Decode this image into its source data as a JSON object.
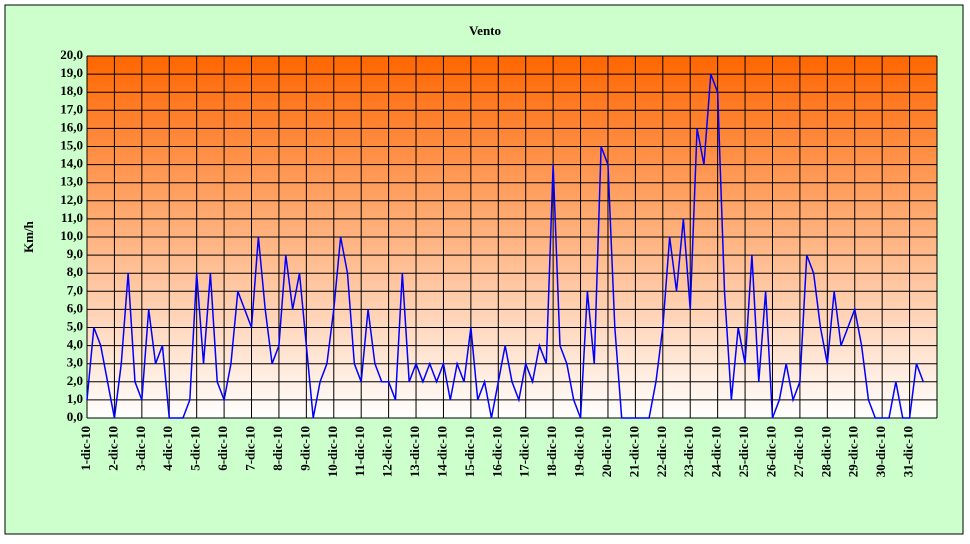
{
  "chart_data": {
    "type": "line",
    "title": "Vento",
    "y_label": "Km/h",
    "x": [
      0,
      6,
      12,
      18,
      24,
      30,
      36,
      42,
      48,
      54,
      60,
      66,
      72,
      78,
      84,
      90,
      96,
      102,
      108,
      114,
      120,
      126,
      132,
      138,
      144,
      150,
      156,
      162,
      168,
      174,
      180,
      186,
      192,
      198,
      204,
      210,
      216,
      222,
      228,
      234,
      240,
      246,
      252,
      258,
      264,
      270,
      276,
      282,
      288,
      294,
      300,
      306,
      312,
      318,
      324,
      330,
      336,
      342,
      348,
      354,
      360,
      366,
      372,
      378,
      384,
      390,
      396,
      402,
      408,
      414,
      420,
      426,
      432,
      438,
      444,
      450,
      456,
      462,
      468,
      474,
      480,
      486,
      492,
      498,
      504,
      510,
      516,
      522,
      528,
      534,
      540,
      546,
      552,
      558,
      564,
      570,
      576,
      582,
      588,
      594,
      600,
      606,
      612,
      618,
      624,
      630,
      636,
      642,
      648,
      654,
      660,
      666,
      672,
      678,
      684,
      690,
      696,
      702,
      708,
      714,
      720,
      726,
      732,
      738
    ],
    "series": [
      {
        "name": "Vento",
        "color": "#0000ff",
        "values": [
          1,
          5,
          4,
          2,
          0,
          3,
          8,
          2,
          1,
          6,
          3,
          4,
          0,
          0,
          0,
          1,
          8,
          3,
          8,
          2,
          1,
          3,
          7,
          6,
          5,
          10,
          6,
          3,
          4,
          9,
          6,
          8,
          4,
          0,
          2,
          3,
          6,
          10,
          8,
          3,
          2,
          6,
          3,
          2,
          2,
          1,
          8,
          2,
          3,
          2,
          3,
          2,
          3,
          1,
          3,
          2,
          5,
          1,
          2,
          0,
          2,
          4,
          2,
          1,
          3,
          2,
          4,
          3,
          14,
          4,
          3,
          1,
          0,
          7,
          3,
          15,
          14,
          5,
          0,
          0,
          0,
          0,
          0,
          2,
          5,
          10,
          7,
          11,
          6,
          16,
          14,
          19,
          18,
          7,
          1,
          5,
          3,
          9,
          2,
          7,
          0,
          1,
          3,
          1,
          2,
          9,
          8,
          5,
          3,
          7,
          4,
          5,
          6,
          4,
          1,
          0,
          0,
          0,
          2,
          0,
          0,
          3,
          2,
          null
        ]
      }
    ],
    "xlim": [
      0,
      744
    ],
    "xticks": [
      {
        "value": 0,
        "label": "1-dic-10"
      },
      {
        "value": 24,
        "label": "2-dic-10"
      },
      {
        "value": 48,
        "label": "3-dic-10"
      },
      {
        "value": 72,
        "label": "4-dic-10"
      },
      {
        "value": 96,
        "label": "5-dic-10"
      },
      {
        "value": 120,
        "label": "6-dic-10"
      },
      {
        "value": 144,
        "label": "7-dic-10"
      },
      {
        "value": 168,
        "label": "8-dic-10"
      },
      {
        "value": 192,
        "label": "9-dic-10"
      },
      {
        "value": 216,
        "label": "10-dic-10"
      },
      {
        "value": 240,
        "label": "11-dic-10"
      },
      {
        "value": 264,
        "label": "12-dic-10"
      },
      {
        "value": 288,
        "label": "13-dic-10"
      },
      {
        "value": 312,
        "label": "14-dic-10"
      },
      {
        "value": 336,
        "label": "15-dic-10"
      },
      {
        "value": 360,
        "label": "16-dic-10"
      },
      {
        "value": 384,
        "label": "17-dic-10"
      },
      {
        "value": 408,
        "label": "18-dic-10"
      },
      {
        "value": 432,
        "label": "19-dic-10"
      },
      {
        "value": 456,
        "label": "20-dic-10"
      },
      {
        "value": 480,
        "label": "21-dic-10"
      },
      {
        "value": 504,
        "label": "22-dic-10"
      },
      {
        "value": 528,
        "label": "23-dic-10"
      },
      {
        "value": 552,
        "label": "24-dic-10"
      },
      {
        "value": 576,
        "label": "25-dic-10"
      },
      {
        "value": 600,
        "label": "26-dic-10"
      },
      {
        "value": 624,
        "label": "27-dic-10"
      },
      {
        "value": 648,
        "label": "28-dic-10"
      },
      {
        "value": 672,
        "label": "29-dic-10"
      },
      {
        "value": 696,
        "label": "30-dic-10"
      },
      {
        "value": 720,
        "label": "31-dic-10"
      }
    ],
    "ylim": [
      0,
      20
    ],
    "yticks": [
      {
        "value": 0,
        "label": "0,0"
      },
      {
        "value": 1,
        "label": "1,0"
      },
      {
        "value": 2,
        "label": "2,0"
      },
      {
        "value": 3,
        "label": "3,0"
      },
      {
        "value": 4,
        "label": "4,0"
      },
      {
        "value": 5,
        "label": "5,0"
      },
      {
        "value": 6,
        "label": "6,0"
      },
      {
        "value": 7,
        "label": "7,0"
      },
      {
        "value": 8,
        "label": "8,0"
      },
      {
        "value": 9,
        "label": "9,0"
      },
      {
        "value": 10,
        "label": "10,0"
      },
      {
        "value": 11,
        "label": "11,0"
      },
      {
        "value": 12,
        "label": "12,0"
      },
      {
        "value": 13,
        "label": "13,0"
      },
      {
        "value": 14,
        "label": "14,0"
      },
      {
        "value": 15,
        "label": "15,0"
      },
      {
        "value": 16,
        "label": "16,0"
      },
      {
        "value": 17,
        "label": "17,0"
      },
      {
        "value": 18,
        "label": "18,0"
      },
      {
        "value": 19,
        "label": "19,0"
      },
      {
        "value": 20,
        "label": "20,0"
      }
    ],
    "grid": true
  }
}
